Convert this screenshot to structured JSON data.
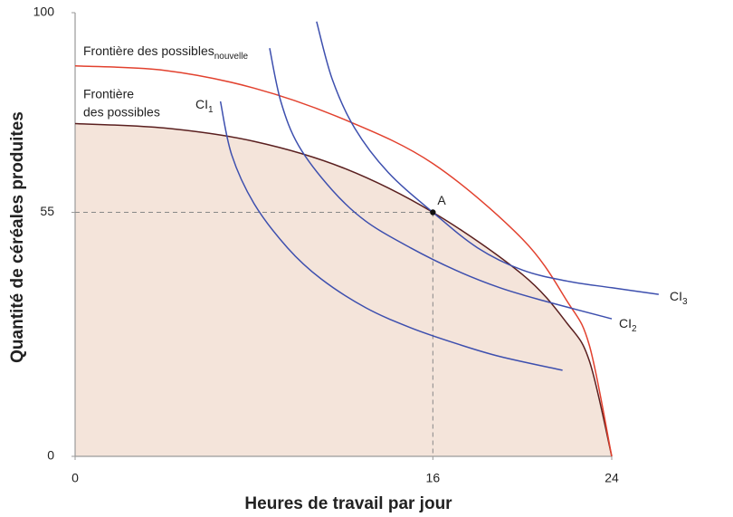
{
  "chart_data": {
    "type": "line",
    "xlabel": "Heures de travail par jour",
    "ylabel": "Quantité de céréales produites",
    "xlim": [
      0,
      24
    ],
    "ylim": [
      0,
      100
    ],
    "xticks": [
      0,
      16,
      24
    ],
    "yticks": [
      0,
      55,
      100
    ],
    "series": [
      {
        "label": [
          "Frontière",
          "des possibles"
        ],
        "color": "#5a1f1f",
        "fill": "#f4e4da",
        "x": [
          0,
          4,
          8,
          12,
          16,
          20,
          22,
          23,
          24
        ],
        "y": [
          75,
          74,
          71,
          65,
          55,
          41,
          30,
          21.5,
          0
        ]
      },
      {
        "label": "Frontière des possibles",
        "label_sub": "nouvelle",
        "color": "#e2412e",
        "x": [
          0,
          4,
          8,
          12,
          16,
          20,
          22,
          23,
          24
        ],
        "y": [
          88,
          87,
          83,
          76,
          66,
          49,
          35,
          25,
          0
        ]
      },
      {
        "label": "CI",
        "label_sub": "1",
        "color": "#3d4fae",
        "x": [
          6.5,
          7,
          8,
          9.5,
          11,
          13,
          15,
          17,
          19,
          21.8
        ],
        "y": [
          80,
          68,
          57,
          47,
          40,
          33.5,
          29,
          25.5,
          22.5,
          19.4
        ]
      },
      {
        "label": "CI",
        "label_sub": "2",
        "color": "#3d4fae",
        "x": [
          8.7,
          9.2,
          10,
          11.5,
          13,
          15,
          17,
          19,
          21,
          24
        ],
        "y": [
          92,
          80,
          70,
          60,
          53,
          47,
          42,
          38,
          35,
          31
        ]
      },
      {
        "label": "CI",
        "label_sub": "3",
        "color": "#3d4fae",
        "x": [
          10.8,
          11.5,
          12.5,
          14,
          16,
          18,
          20,
          22,
          24,
          26.1
        ],
        "y": [
          98,
          85,
          74,
          64,
          55,
          47,
          42,
          39.5,
          38,
          36.5
        ]
      }
    ],
    "annotations": [
      {
        "text": "A",
        "x": 16,
        "y": 55
      }
    ]
  }
}
